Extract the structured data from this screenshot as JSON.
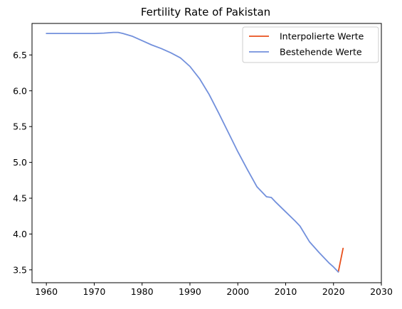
{
  "chart_data": {
    "type": "line",
    "title": "Fertility Rate of Pakistan",
    "xlabel": "",
    "ylabel": "",
    "xlim": [
      1957,
      2030
    ],
    "ylim": [
      3.32,
      6.94
    ],
    "xticks": [
      1960,
      1970,
      1980,
      1990,
      2000,
      2010,
      2020,
      2030
    ],
    "yticks": [
      3.5,
      4.0,
      4.5,
      5.0,
      5.5,
      6.0,
      6.5
    ],
    "grid": false,
    "legend_position": "top-right",
    "series": [
      {
        "name": "Interpolierte Werte",
        "color": "#e8501c",
        "x": [
          2021,
          2022
        ],
        "y": [
          3.47,
          3.8
        ]
      },
      {
        "name": "Bestehende Werte",
        "color": "#7290dc",
        "x": [
          1960,
          1962,
          1964,
          1966,
          1968,
          1970,
          1972,
          1974,
          1975,
          1976,
          1978,
          1980,
          1982,
          1984,
          1986,
          1988,
          1990,
          1992,
          1994,
          1996,
          1998,
          2000,
          2002,
          2004,
          2006,
          2007,
          2008,
          2010,
          2012,
          2013,
          2015,
          2017,
          2019,
          2020,
          2021
        ],
        "y": [
          6.8,
          6.8,
          6.8,
          6.8,
          6.8,
          6.8,
          6.805,
          6.815,
          6.815,
          6.8,
          6.76,
          6.7,
          6.64,
          6.59,
          6.53,
          6.46,
          6.34,
          6.17,
          5.95,
          5.69,
          5.42,
          5.15,
          4.9,
          4.66,
          4.52,
          4.51,
          4.44,
          4.31,
          4.18,
          4.11,
          3.89,
          3.74,
          3.6,
          3.54,
          3.47
        ]
      }
    ]
  }
}
